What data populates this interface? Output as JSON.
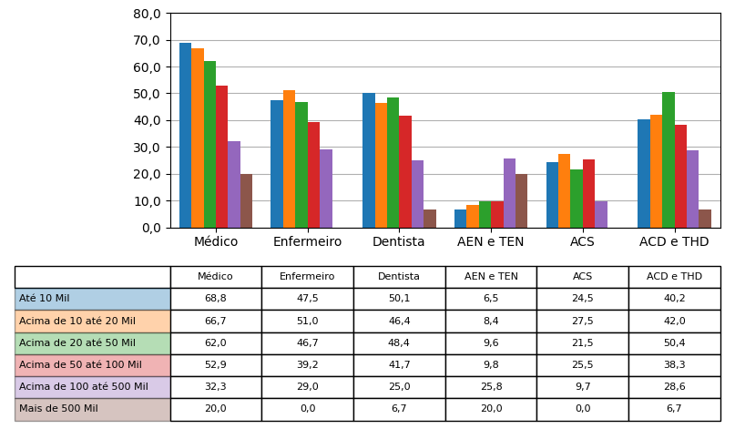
{
  "chart_data": {
    "type": "bar",
    "categories": [
      "Médico",
      "Enfermeiro",
      "Dentista",
      "AEN e TEN",
      "ACS",
      "ACD e THD"
    ],
    "series": [
      {
        "name": "Até 10 Mil",
        "values": [
          68.8,
          47.5,
          50.1,
          6.5,
          24.5,
          40.2
        ],
        "value_labels": [
          "68,8",
          "47,5",
          "50,1",
          "6,5",
          "24,5",
          "40,2"
        ]
      },
      {
        "name": "Acima de 10 até 20 Mil",
        "values": [
          66.7,
          51.0,
          46.4,
          8.4,
          27.5,
          42.0
        ],
        "value_labels": [
          "66,7",
          "51,0",
          "46,4",
          "8,4",
          "27,5",
          "42,0"
        ]
      },
      {
        "name": "Acima de 20 até 50 Mil",
        "values": [
          62.0,
          46.7,
          48.4,
          9.6,
          21.5,
          50.4
        ],
        "value_labels": [
          "62,0",
          "46,7",
          "48,4",
          "9,6",
          "21,5",
          "50,4"
        ]
      },
      {
        "name": "Acima de 50 até 100 Mil",
        "values": [
          52.9,
          39.2,
          41.7,
          9.8,
          25.5,
          38.3
        ],
        "value_labels": [
          "52,9",
          "39,2",
          "41,7",
          "9,8",
          "25,5",
          "38,3"
        ]
      },
      {
        "name": "Acima de 100 até 500 Mil",
        "values": [
          32.3,
          29.0,
          25.0,
          25.8,
          9.7,
          28.6
        ],
        "value_labels": [
          "32,3",
          "29,0",
          "25,0",
          "25,8",
          "9,7",
          "28,6"
        ]
      },
      {
        "name": "Mais de 500 Mil",
        "values": [
          20.0,
          0.0,
          6.7,
          20.0,
          0.0,
          6.7
        ],
        "value_labels": [
          "20,0",
          "0,0",
          "6,7",
          "20,0",
          "0,0",
          "6,7"
        ]
      }
    ],
    "ylim": [
      0,
      80
    ],
    "yticks": [
      {
        "value": 0,
        "label": "0,0"
      },
      {
        "value": 10,
        "label": "10,0"
      },
      {
        "value": 20,
        "label": "20,0"
      },
      {
        "value": 30,
        "label": "30,0"
      },
      {
        "value": 40,
        "label": "40,0"
      },
      {
        "value": 50,
        "label": "50,0"
      },
      {
        "value": 60,
        "label": "60,0"
      },
      {
        "value": 70,
        "label": "70,0"
      },
      {
        "value": 80,
        "label": "80,0"
      }
    ],
    "grid": true
  }
}
